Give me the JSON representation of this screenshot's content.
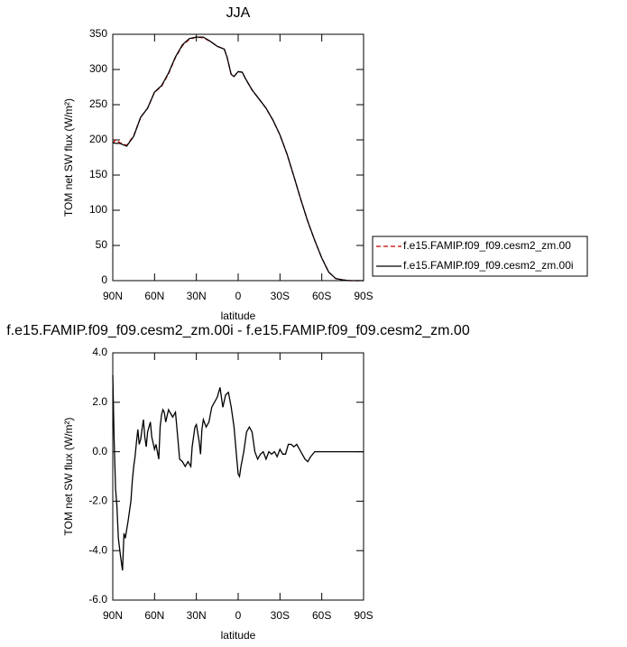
{
  "chart_data": [
    {
      "type": "line",
      "title": "JJA",
      "xlabel": "latitude",
      "ylabel": "TOM net SW flux (W/m²)",
      "xlim": [
        90,
        -90
      ],
      "ylim": [
        0,
        350
      ],
      "xticks": [
        {
          "value": 90,
          "label": "90N"
        },
        {
          "value": 60,
          "label": "60N"
        },
        {
          "value": 30,
          "label": "30N"
        },
        0,
        {
          "value": -30,
          "label": "30S"
        },
        {
          "value": -60,
          "label": "60S"
        },
        {
          "value": -90,
          "label": "90S"
        }
      ],
      "yticks": [
        0,
        50,
        100,
        150,
        200,
        250,
        300,
        350
      ],
      "legend": "outside-right",
      "x": [
        90,
        88,
        85,
        80,
        75,
        70,
        65,
        60,
        55,
        50,
        45,
        40,
        35,
        30,
        25,
        20,
        15,
        10,
        8,
        5,
        3,
        0,
        -3,
        -5,
        -10,
        -15,
        -20,
        -25,
        -30,
        -35,
        -40,
        -45,
        -50,
        -55,
        -60,
        -65,
        -70,
        -75,
        -80,
        -85,
        -90
      ],
      "series": [
        {
          "name": "f.e15.FAMIP.f09_f09.cesm2_zm.00",
          "color": "#cc0000",
          "linestyle": "dashed",
          "values": [
            195,
            200,
            196,
            192,
            206,
            232,
            245,
            268,
            276,
            294,
            317,
            334,
            343,
            346,
            345,
            340,
            333,
            329,
            318,
            292,
            290,
            297,
            296,
            288,
            271,
            258,
            245,
            228,
            207,
            180,
            148,
            115,
            84,
            57,
            32,
            12,
            3,
            1,
            0,
            0,
            0
          ]
        },
        {
          "name": "f.e15.FAMIP.f09_f09.cesm2_zm.00i",
          "color": "#000000",
          "linestyle": "solid",
          "values": [
            196,
            195,
            195,
            191,
            205,
            232,
            245,
            268,
            277,
            295,
            318,
            335,
            344,
            346,
            346,
            340,
            333,
            329,
            318,
            293,
            290,
            297,
            296,
            288,
            271,
            258,
            245,
            228,
            207,
            180,
            148,
            115,
            84,
            57,
            32,
            12,
            3,
            1,
            0,
            0,
            0
          ]
        }
      ]
    },
    {
      "type": "line",
      "title": "f.e15.FAMIP.f09_f09.cesm2_zm.00i - f.e15.FAMIP.f09_f09.cesm2_zm.00",
      "xlabel": "latitude",
      "ylabel": "TOM net SW flux (W/m²)",
      "xlim": [
        90,
        -90
      ],
      "ylim": [
        -6,
        4
      ],
      "xticks": [
        {
          "value": 90,
          "label": "90N"
        },
        {
          "value": 60,
          "label": "60N"
        },
        {
          "value": 30,
          "label": "30N"
        },
        0,
        {
          "value": -30,
          "label": "30S"
        },
        {
          "value": -60,
          "label": "60S"
        },
        {
          "value": -90,
          "label": "90S"
        }
      ],
      "yticks": [
        {
          "value": -6,
          "label": "-6.0"
        },
        {
          "value": -4,
          "label": "-4.0"
        },
        {
          "value": -2,
          "label": "-2.0"
        },
        {
          "value": 0,
          "label": "0.0"
        },
        {
          "value": 2,
          "label": "2.0"
        },
        {
          "value": 4,
          "label": "4.0"
        }
      ],
      "x": [
        90,
        89,
        88,
        87,
        86,
        84.5,
        83,
        82,
        81,
        79,
        77,
        76,
        75,
        74,
        73,
        72,
        71,
        70,
        69,
        68,
        67,
        66,
        65,
        63,
        62,
        60,
        59,
        57,
        56,
        55,
        54,
        53,
        52,
        50,
        48,
        47,
        45,
        44,
        42,
        40,
        38,
        36,
        34,
        33,
        31,
        30,
        28,
        27,
        26,
        25,
        23,
        21,
        19,
        17,
        15,
        13,
        11,
        9,
        7,
        5,
        3,
        1,
        0,
        -1,
        -2,
        -4,
        -6,
        -8,
        -10,
        -12,
        -14,
        -16,
        -18,
        -20,
        -22,
        -24,
        -26,
        -28,
        -30,
        -32,
        -34,
        -36,
        -38,
        -40,
        -42,
        -44,
        -46,
        -48,
        -50,
        -52,
        -55,
        -90
      ],
      "series": [
        {
          "name": null,
          "color": "#000000",
          "linestyle": "solid",
          "values": [
            3.1,
            0.5,
            -1.5,
            -2.2,
            -3.5,
            -4.2,
            -4.8,
            -3.3,
            -3.5,
            -2.8,
            -2.0,
            -1.2,
            -0.6,
            -0.2,
            0.4,
            0.9,
            0.3,
            0.5,
            0.9,
            1.3,
            0.6,
            0.2,
            0.8,
            1.2,
            0.6,
            0.1,
            0.3,
            -0.3,
            1.0,
            1.5,
            1.7,
            1.6,
            1.2,
            1.7,
            1.5,
            1.4,
            1.6,
            1.0,
            -0.3,
            -0.4,
            -0.6,
            -0.4,
            -0.6,
            0.2,
            1.0,
            1.1,
            0.4,
            -0.1,
            0.9,
            1.3,
            1.0,
            1.2,
            1.8,
            2.0,
            2.2,
            2.6,
            1.8,
            2.3,
            2.4,
            1.8,
            1.0,
            -0.3,
            -0.9,
            -1.0,
            -0.6,
            0.0,
            0.8,
            1.0,
            0.8,
            0.0,
            -0.3,
            -0.1,
            0.0,
            -0.3,
            0.0,
            -0.1,
            0.0,
            -0.2,
            0.1,
            -0.1,
            -0.1,
            0.3,
            0.3,
            0.2,
            0.3,
            0.1,
            -0.1,
            -0.3,
            -0.4,
            -0.2,
            0.0,
            0.0
          ]
        }
      ]
    }
  ]
}
